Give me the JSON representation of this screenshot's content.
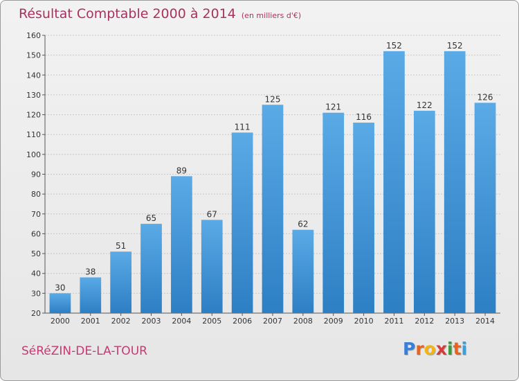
{
  "chart_data": {
    "type": "bar",
    "title": "Résultat Comptable 2000 à 2014",
    "subtitle": "(en milliers d'€)",
    "categories": [
      "2000",
      "2001",
      "2002",
      "2003",
      "2004",
      "2005",
      "2006",
      "2007",
      "2008",
      "2009",
      "2010",
      "2011",
      "2012",
      "2013",
      "2014"
    ],
    "values": [
      30,
      38,
      51,
      65,
      89,
      67,
      111,
      125,
      62,
      121,
      116,
      152,
      122,
      152,
      126
    ],
    "xlabel": "",
    "ylabel": "",
    "ylim": [
      20,
      160
    ],
    "yticks": [
      20,
      30,
      40,
      50,
      60,
      70,
      80,
      90,
      100,
      110,
      120,
      130,
      140,
      150,
      160
    ],
    "grid": true,
    "bar_color_top": "#5aaae6",
    "bar_color_bottom": "#2d7fc4"
  },
  "footer": {
    "commune": "SéRéZIN-DE-LA-TOUR"
  },
  "logo": {
    "letters": [
      "P",
      "r",
      "o",
      "x",
      "i",
      "t",
      "i"
    ],
    "colors": [
      "#3b7fd4",
      "#e8641e",
      "#f3b514",
      "#d63a3a",
      "#3c9a3c",
      "#e8641e",
      "#3b9fd8"
    ]
  }
}
